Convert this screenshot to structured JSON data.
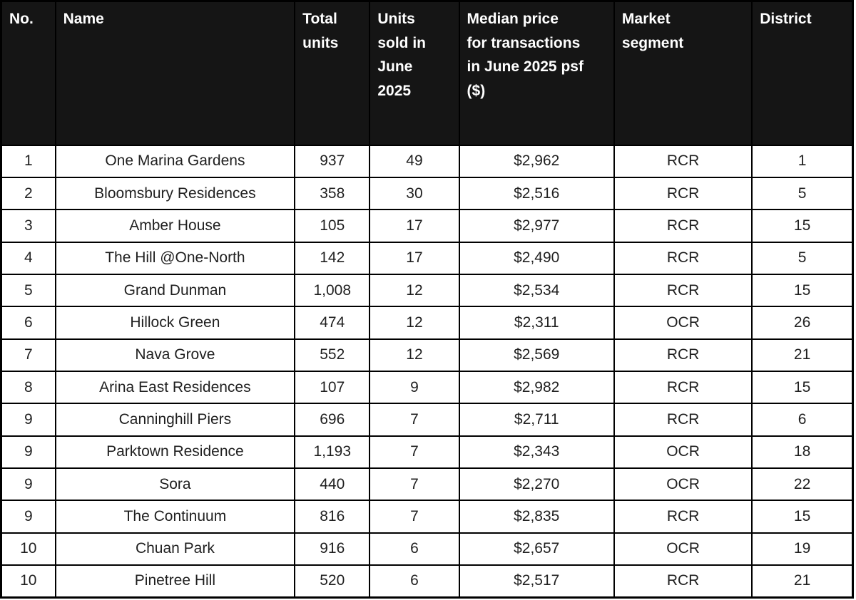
{
  "table": {
    "column_keys": [
      "no",
      "name",
      "total_units",
      "units_sold_june_2025",
      "median_price_june_2025_psf",
      "market_segment",
      "district"
    ],
    "columns": [
      {
        "label": "No."
      },
      {
        "label": "Name"
      },
      {
        "label": "Total\nunits"
      },
      {
        "label": "Units\nsold in\nJune\n2025"
      },
      {
        "label": "Median price\nfor transactions\nin June 2025 psf\n($)"
      },
      {
        "label": "Market\nsegment"
      },
      {
        "label": "District"
      }
    ],
    "rows": [
      [
        "1",
        "One Marina Gardens",
        "937",
        "49",
        "$2,962",
        "RCR",
        "1"
      ],
      [
        "2",
        "Bloomsbury Residences",
        "358",
        "30",
        "$2,516",
        "RCR",
        "5"
      ],
      [
        "3",
        "Amber House",
        "105",
        "17",
        "$2,977",
        "RCR",
        "15"
      ],
      [
        "4",
        "The Hill @One-North",
        "142",
        "17",
        "$2,490",
        "RCR",
        "5"
      ],
      [
        "5",
        "Grand Dunman",
        "1,008",
        "12",
        "$2,534",
        "RCR",
        "15"
      ],
      [
        "6",
        "Hillock Green",
        "474",
        "12",
        "$2,311",
        "OCR",
        "26"
      ],
      [
        "7",
        "Nava Grove",
        "552",
        "12",
        "$2,569",
        "RCR",
        "21"
      ],
      [
        "8",
        "Arina East Residences",
        "107",
        "9",
        "$2,982",
        "RCR",
        "15"
      ],
      [
        "9",
        "Canninghill Piers",
        "696",
        "7",
        "$2,711",
        "RCR",
        "6"
      ],
      [
        "9",
        "Parktown Residence",
        "1,193",
        "7",
        "$2,343",
        "OCR",
        "18"
      ],
      [
        "9",
        "Sora",
        "440",
        "7",
        "$2,270",
        "OCR",
        "22"
      ],
      [
        "9",
        "The Continuum",
        "816",
        "7",
        "$2,835",
        "RCR",
        "15"
      ],
      [
        "10",
        "Chuan Park",
        "916",
        "6",
        "$2,657",
        "OCR",
        "19"
      ],
      [
        "10",
        "Pinetree Hill",
        "520",
        "6",
        "$2,517",
        "RCR",
        "21"
      ]
    ]
  },
  "colors": {
    "header_bg": "#151515",
    "header_text": "#ffffff",
    "body_bg": "#ffffff",
    "body_text": "#1f1f1f",
    "border": "#000000"
  }
}
